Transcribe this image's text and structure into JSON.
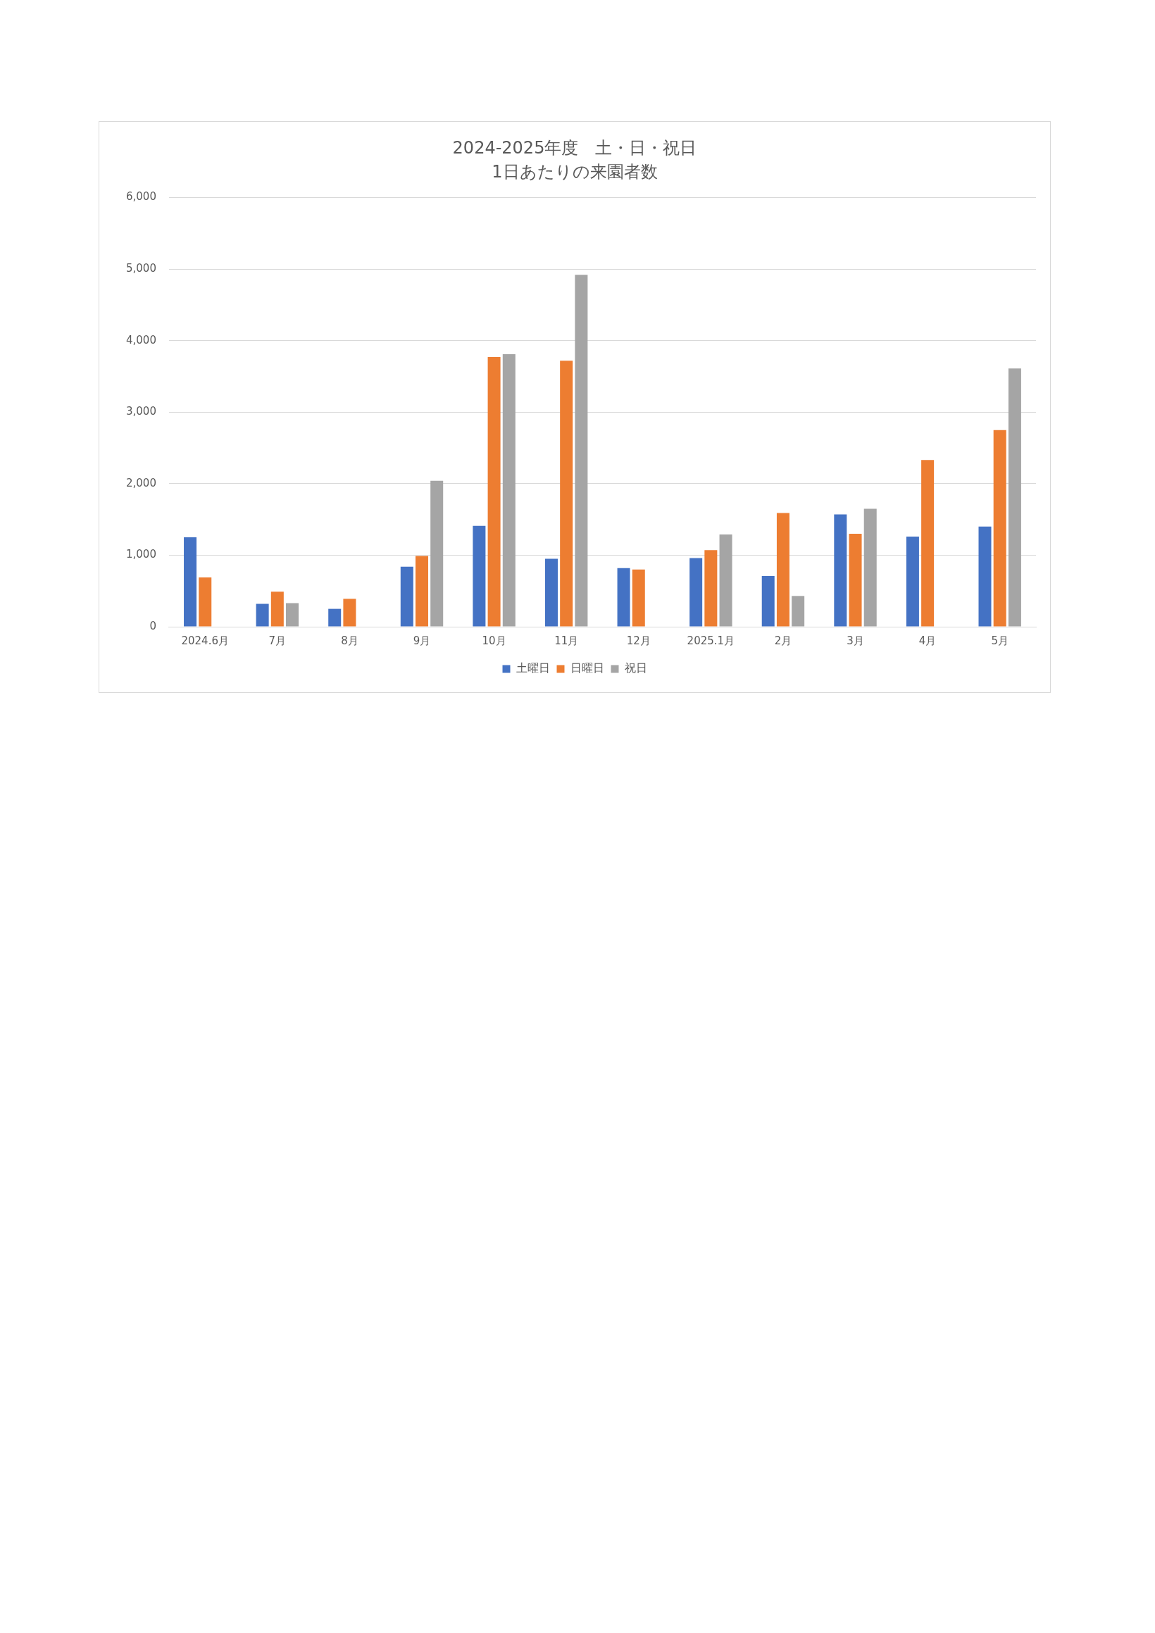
{
  "chart_data": {
    "type": "bar",
    "title": "2024-2025年度　土・日・祝日",
    "subtitle": "1日あたりの来園者数",
    "categories": [
      "2024.6月",
      "7月",
      "8月",
      "9月",
      "10月",
      "11月",
      "12月",
      "2025.1月",
      "2月",
      "3月",
      "4月",
      "5月"
    ],
    "series": [
      {
        "name": "土曜日",
        "color": "#4472c4",
        "values": [
          1250,
          320,
          250,
          840,
          1410,
          950,
          820,
          960,
          710,
          1570,
          1260,
          1400
        ]
      },
      {
        "name": "日曜日",
        "color": "#ed7d31",
        "values": [
          690,
          490,
          390,
          990,
          3770,
          3720,
          800,
          1070,
          1590,
          1300,
          2330,
          2750
        ]
      },
      {
        "name": "祝日",
        "color": "#a5a5a5",
        "values": [
          null,
          330,
          null,
          2040,
          3810,
          4920,
          null,
          1290,
          430,
          1650,
          null,
          3610
        ]
      }
    ],
    "ylim": [
      0,
      6000
    ],
    "yticks": [
      {
        "value": 0,
        "label": "0"
      },
      {
        "value": 1000,
        "label": "1,000"
      },
      {
        "value": 2000,
        "label": "2,000"
      },
      {
        "value": 3000,
        "label": "3,000"
      },
      {
        "value": 4000,
        "label": "4,000"
      },
      {
        "value": 5000,
        "label": "5,000"
      },
      {
        "value": 6000,
        "label": "6,000"
      }
    ],
    "grid": "y",
    "legend": "bottom"
  }
}
